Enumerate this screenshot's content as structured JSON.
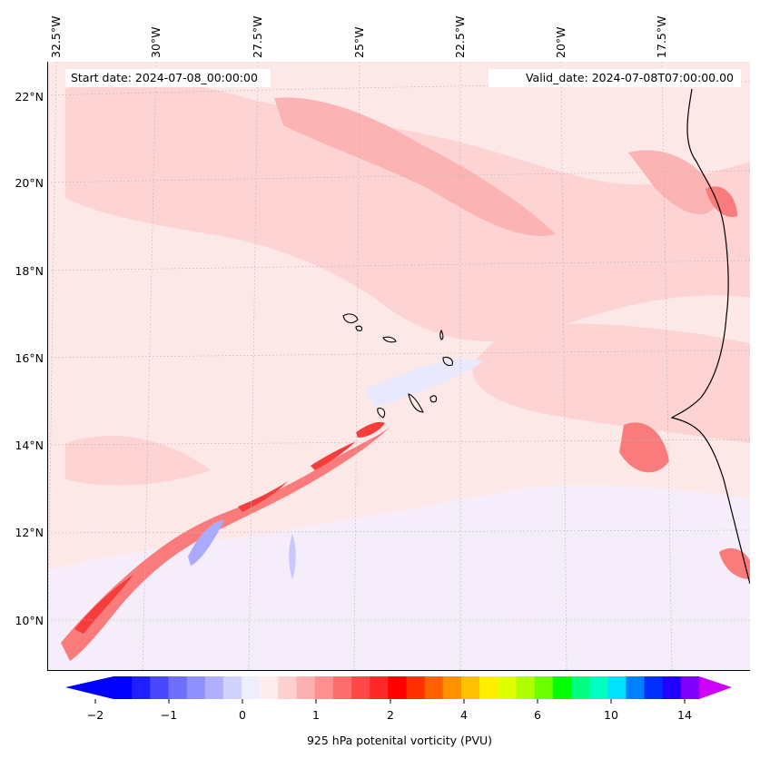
{
  "map": {
    "start_date": "Start date: 2024-07-08_00:00:00",
    "valid_date": "Valid_date: 2024-07-08T07:00:00.00",
    "lon_labels": [
      "32.5°W",
      "30°W",
      "27.5°W",
      "25°W",
      "22.5°W",
      "20°W",
      "17.5°W"
    ],
    "lat_labels": [
      "22°N",
      "20°N",
      "18°N",
      "16°N",
      "14°N",
      "12°N",
      "10°N"
    ],
    "colors": {
      "background": "#fde8e8",
      "light_pink": "#fdd3d3",
      "pink": "#fcb3b3",
      "red_mid": "#fa7b7b",
      "red": "#f73c3c",
      "blue_light": "#e8e8ff",
      "blue": "#aaaaff"
    }
  },
  "colorbar": {
    "ticks": [
      "−2",
      "−1",
      "0",
      "1",
      "2",
      "4",
      "6",
      "10",
      "14"
    ],
    "label": "925 hPa potenital vorticity (PVU)",
    "colors": [
      "#0000ff",
      "#2020ff",
      "#4848ff",
      "#6e6eff",
      "#9090ff",
      "#b0b0ff",
      "#d2d2ff",
      "#eeeeff",
      "#ffeeee",
      "#ffd0d0",
      "#ffb0b0",
      "#ff9090",
      "#ff6e6e",
      "#ff4848",
      "#ff2828",
      "#ff0000",
      "#ff3000",
      "#ff6000",
      "#ff9000",
      "#ffc000",
      "#fff000",
      "#e0ff00",
      "#b0ff00",
      "#70ff00",
      "#00ff00",
      "#00ff80",
      "#00ffc0",
      "#00e0ff",
      "#0080ff",
      "#0030ff",
      "#2000ff",
      "#8000ff"
    ],
    "under_color": "#0000ff",
    "over_color": "#cc00ff"
  }
}
